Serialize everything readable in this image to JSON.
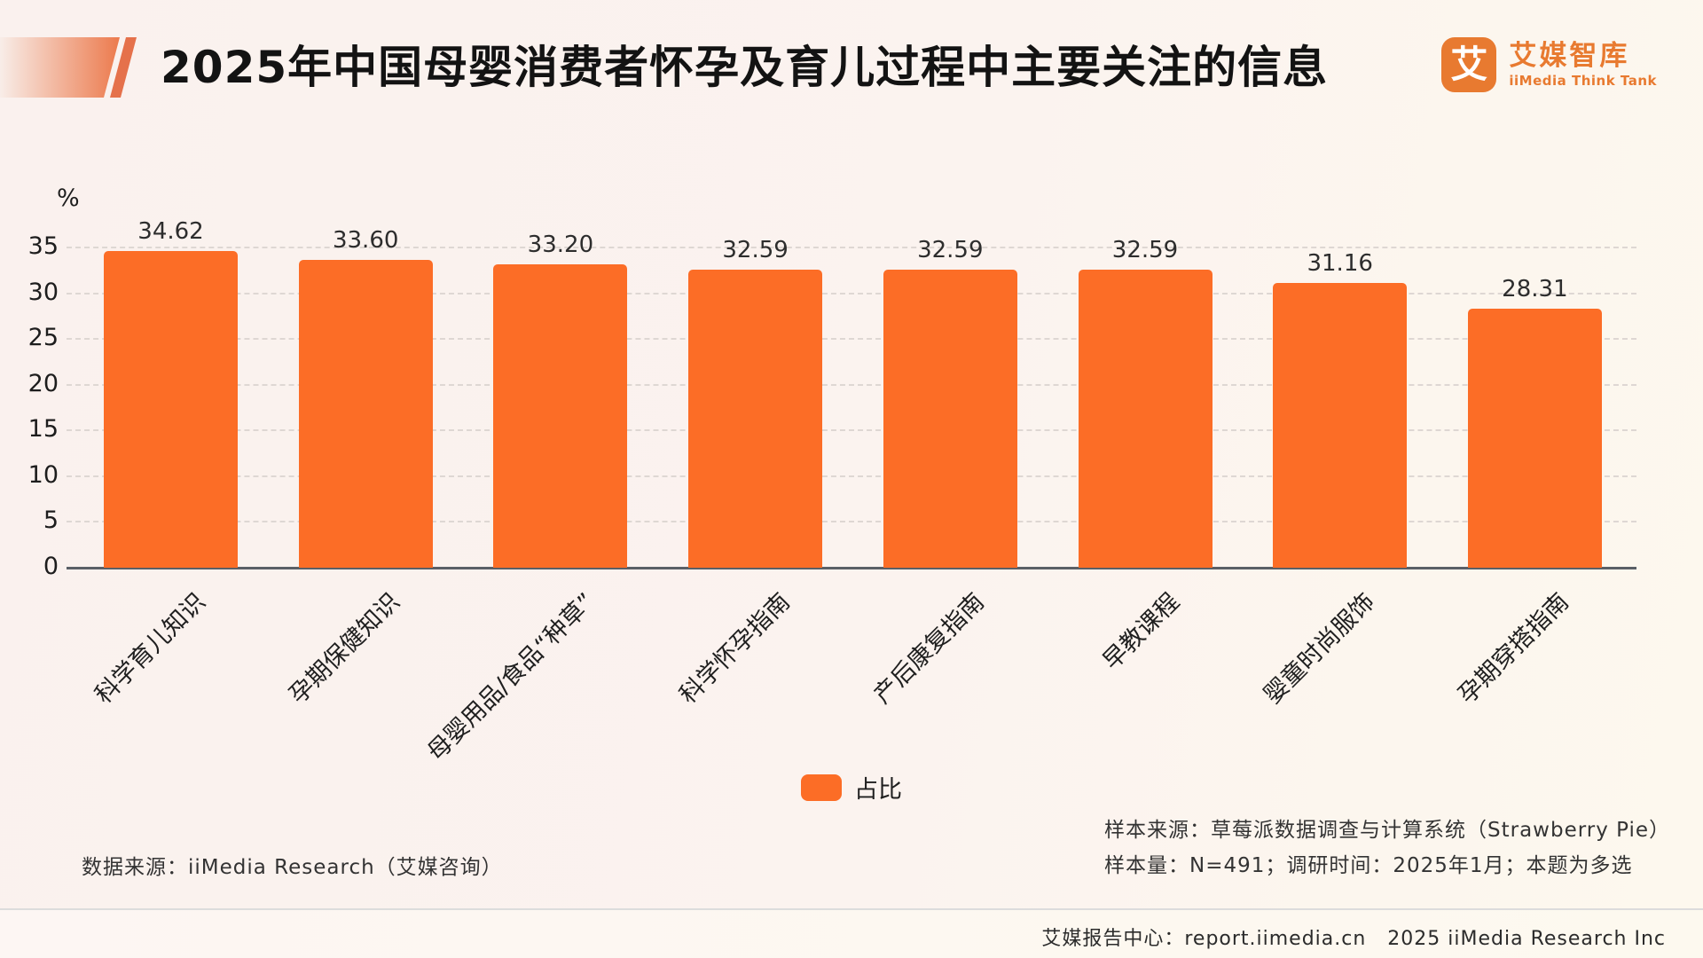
{
  "header": {
    "title": "2025年中国母婴消费者怀孕及育儿过程中主要关注的信息",
    "logo": {
      "symbol": "艾",
      "name_cn": "艾媒智库",
      "name_en": "iiMedia Think Tank"
    }
  },
  "chart_data": {
    "type": "bar",
    "title": "2025年中国母婴消费者怀孕及育儿过程中主要关注的信息",
    "categories": [
      "科学育儿知识",
      "孕期保健知识",
      "母婴用品/食品“种草”",
      "科学怀孕指南",
      "产后康复指南",
      "早教课程",
      "婴童时尚服饰",
      "孕期穿搭指南"
    ],
    "values": [
      34.62,
      33.6,
      33.2,
      32.59,
      32.59,
      32.59,
      31.16,
      28.31
    ],
    "value_labels": [
      "34.62",
      "33.60",
      "33.20",
      "32.59",
      "32.59",
      "32.59",
      "31.16",
      "28.31"
    ],
    "xlabel": "",
    "ylabel": "%",
    "ylim": [
      0,
      35
    ],
    "yticks": [
      0,
      5,
      10,
      15,
      20,
      25,
      30,
      35
    ],
    "grid": true,
    "grid_style": "dashed",
    "bar_color": "#fc6d26",
    "legend": {
      "label": "占比",
      "position": "bottom"
    }
  },
  "footer": {
    "source_left": "数据来源：iiMedia Research（艾媒咨询）",
    "sample_source": "样本来源：草莓派数据调查与计算系统（Strawberry Pie）",
    "sample_info": "样本量：N=491；调研时间：2025年1月；本题为多选",
    "bottom_bar": "艾媒报告中心：report.iimedia.cn   2025 iiMedia Research Inc"
  },
  "colors": {
    "bar": "#fc6d26",
    "brand": "#e87a30",
    "background_left": "#faf1ee",
    "background_right": "#fdf8ee",
    "axis": "#5a5f66",
    "gridline": "#ded7d3",
    "text": "#1d1d1d"
  }
}
